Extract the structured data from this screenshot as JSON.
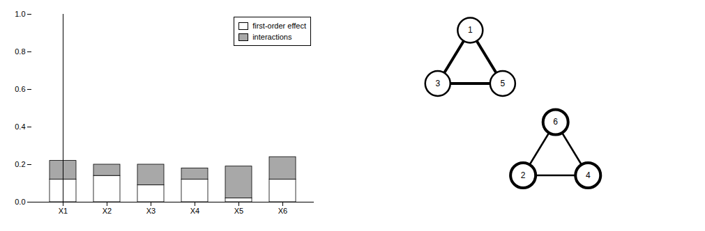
{
  "chart_data": [
    {
      "type": "bar",
      "stacked": true,
      "categories": [
        "X1",
        "X2",
        "X3",
        "X4",
        "X5",
        "X6"
      ],
      "series": [
        {
          "name": "first-order effect",
          "color": "#ffffff",
          "values": [
            0.12,
            0.14,
            0.09,
            0.12,
            0.02,
            0.12
          ]
        },
        {
          "name": "interactions",
          "color": "#a8a8a8",
          "values": [
            0.1,
            0.06,
            0.11,
            0.06,
            0.17,
            0.12
          ]
        }
      ],
      "ylim": [
        0.0,
        1.0
      ],
      "yticks": [
        {
          "value": 0.0,
          "label": "0.0"
        },
        0.2,
        0.4,
        0.6,
        0.8,
        {
          "value": 1.0,
          "label": "1.0"
        }
      ],
      "legend": "upper right"
    },
    {
      "type": "network",
      "nodes": [
        1,
        3,
        5
      ],
      "edges": [
        [
          1,
          3
        ],
        [
          1,
          5
        ],
        [
          3,
          5
        ]
      ]
    },
    {
      "type": "network",
      "nodes": [
        6,
        2,
        4
      ],
      "edges": [
        [
          6,
          2
        ],
        [
          6,
          4
        ],
        [
          2,
          4
        ]
      ]
    }
  ]
}
